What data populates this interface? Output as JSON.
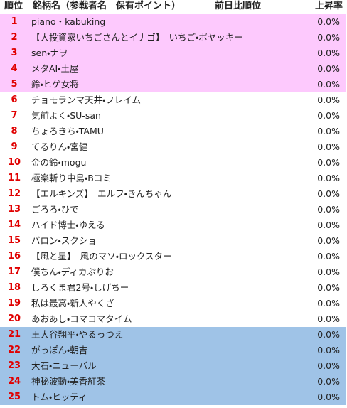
{
  "header": {
    "rank": "順位",
    "name": "銘柄名（参戦者名　保有ポイント）",
    "prev_rank": "前日比順位",
    "rate": "上昇率"
  },
  "rows": [
    {
      "rank": 1,
      "name": "piano・kabuking",
      "rate": "0.0%"
    },
    {
      "rank": 2,
      "name": "【大投資家いちごさんとイナゴ】　いちご・ボヤッキー",
      "rate": "0.0%"
    },
    {
      "rank": 3,
      "name": "sen・ナヲ",
      "rate": "0.0%"
    },
    {
      "rank": 4,
      "name": "メタAI・土屋",
      "rate": "0.0%"
    },
    {
      "rank": 5,
      "name": "鈴・ヒゲ女将",
      "rate": "0.0%"
    },
    {
      "rank": 6,
      "name": "チョモランマ天井・フレイム",
      "rate": "0.0%"
    },
    {
      "rank": 7,
      "name": "気前よく・SU-san",
      "rate": "0.0%"
    },
    {
      "rank": 8,
      "name": "ちょろきち・TAMU",
      "rate": "0.0%"
    },
    {
      "rank": 9,
      "name": "てるりん・宮健",
      "rate": "0.0%"
    },
    {
      "rank": 10,
      "name": "金の鈴・mogu",
      "rate": "0.0%"
    },
    {
      "rank": 11,
      "name": "極楽斬り中島・Bコミ",
      "rate": "0.0%"
    },
    {
      "rank": 12,
      "name": "【エルキンズ】　エルフ・きんちゃん",
      "rate": "0.0%"
    },
    {
      "rank": 13,
      "name": "ごろろ・ひで",
      "rate": "0.0%"
    },
    {
      "rank": 14,
      "name": "ハイド博士・ゆえる",
      "rate": "0.0%"
    },
    {
      "rank": 15,
      "name": "バロン・スクショ",
      "rate": "0.0%"
    },
    {
      "rank": 16,
      "name": "【風と星】　風のマソ・ロックスター",
      "rate": "0.0%"
    },
    {
      "rank": 17,
      "name": "僕ちん・ディカぷりお",
      "rate": "0.0%"
    },
    {
      "rank": 18,
      "name": "しろくま君2号・しげちー",
      "rate": "0.0%"
    },
    {
      "rank": 19,
      "name": "私は最高・新人やくざ",
      "rate": "0.0%"
    },
    {
      "rank": 20,
      "name": "あおあし・コマコマタイム",
      "rate": "0.0%"
    },
    {
      "rank": 21,
      "name": "王大谷翔平・やるっつえ",
      "rate": "0.0%"
    },
    {
      "rank": 22,
      "name": "がっぽん・朝吉",
      "rate": "0.0%"
    },
    {
      "rank": 23,
      "name": "大石・ニューバル",
      "rate": "0.0%"
    },
    {
      "rank": 24,
      "name": "神秘波動・美香紅茶",
      "rate": "0.0%"
    },
    {
      "rank": 25,
      "name": "トム・ヒッティ",
      "rate": "0.0%"
    }
  ]
}
